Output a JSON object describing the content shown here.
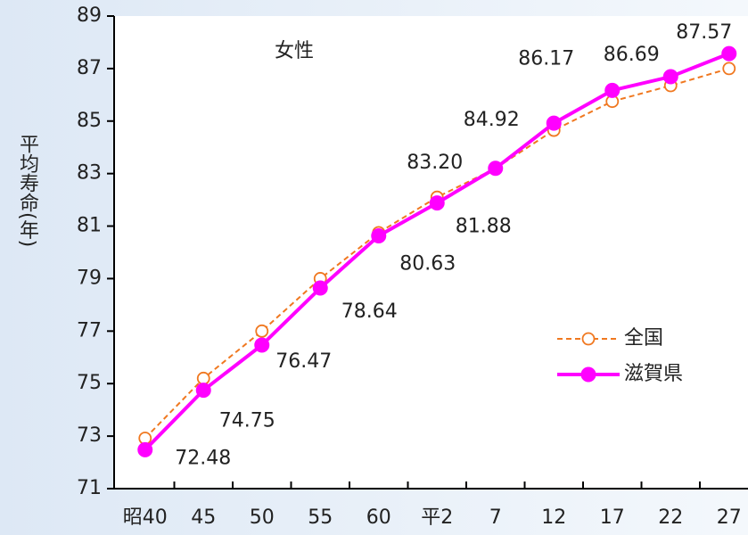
{
  "chart_data": {
    "type": "line",
    "title": "女性",
    "y_label": "平均寿命(年)",
    "categories": [
      "昭40",
      "45",
      "50",
      "55",
      "60",
      "平2",
      "7",
      "12",
      "17",
      "22",
      "27"
    ],
    "series": [
      {
        "name": "全国",
        "color": "#f07820",
        "marker": "open-circle",
        "dash": true,
        "values": [
          72.92,
          75.2,
          77.0,
          79.0,
          80.75,
          82.1,
          83.2,
          84.65,
          85.75,
          86.35,
          87.0
        ]
      },
      {
        "name": "滋賀県",
        "color": "#ff00ff",
        "marker": "filled-circle",
        "dash": false,
        "values": [
          72.48,
          74.75,
          76.47,
          78.64,
          80.63,
          81.88,
          83.2,
          84.92,
          86.17,
          86.69,
          87.57
        ],
        "value_labels": [
          "72.48",
          "74.75",
          "76.47",
          "78.64",
          "80.63",
          "81.88",
          "83.20",
          "84.92",
          "86.17",
          "86.69",
          "87.57"
        ]
      }
    ],
    "ylim": [
      71,
      89
    ],
    "yticks": [
      71,
      73,
      75,
      77,
      79,
      81,
      83,
      85,
      87,
      89
    ]
  }
}
